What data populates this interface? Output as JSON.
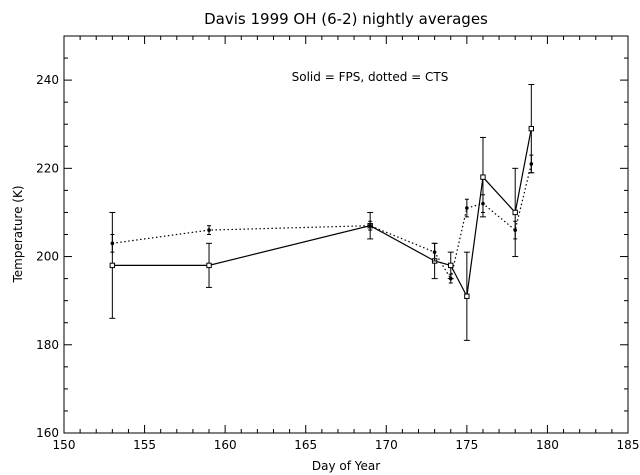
{
  "chart_data": {
    "type": "line",
    "title": "Davis 1999 OH (6-2) nightly averages",
    "annotation": "Solid = FPS, dotted = CTS",
    "xlabel": "Day of Year",
    "ylabel": "Temperature (K)",
    "xlim": [
      150,
      185
    ],
    "ylim": [
      160,
      250
    ],
    "xticks": [
      150,
      155,
      160,
      165,
      170,
      175,
      180,
      185
    ],
    "xtick_labels": [
      "150",
      "155",
      "160",
      "165",
      "170",
      "175",
      "180",
      "185"
    ],
    "yticks": [
      160,
      180,
      200,
      220,
      240
    ],
    "ytick_labels": [
      "160",
      "180",
      "200",
      "220",
      "240"
    ],
    "grid": false,
    "series": [
      {
        "name": "FPS",
        "style": "solid",
        "marker": "square",
        "color": "#000000",
        "x": [
          153,
          159,
          169,
          173,
          174,
          175,
          176,
          178,
          179
        ],
        "y": [
          198,
          198,
          207,
          199,
          198,
          191,
          218,
          210,
          229
        ],
        "err": [
          12,
          5,
          3,
          4,
          3,
          10,
          9,
          10,
          10
        ]
      },
      {
        "name": "CTS",
        "style": "dotted",
        "marker": "dot",
        "color": "#000000",
        "x": [
          153,
          159,
          169,
          173,
          174,
          175,
          176,
          178,
          179
        ],
        "y": [
          203,
          206,
          207,
          201,
          195,
          211,
          212,
          206,
          221
        ],
        "err": [
          2,
          1,
          1,
          2,
          1,
          2,
          2,
          2,
          2
        ]
      }
    ]
  }
}
